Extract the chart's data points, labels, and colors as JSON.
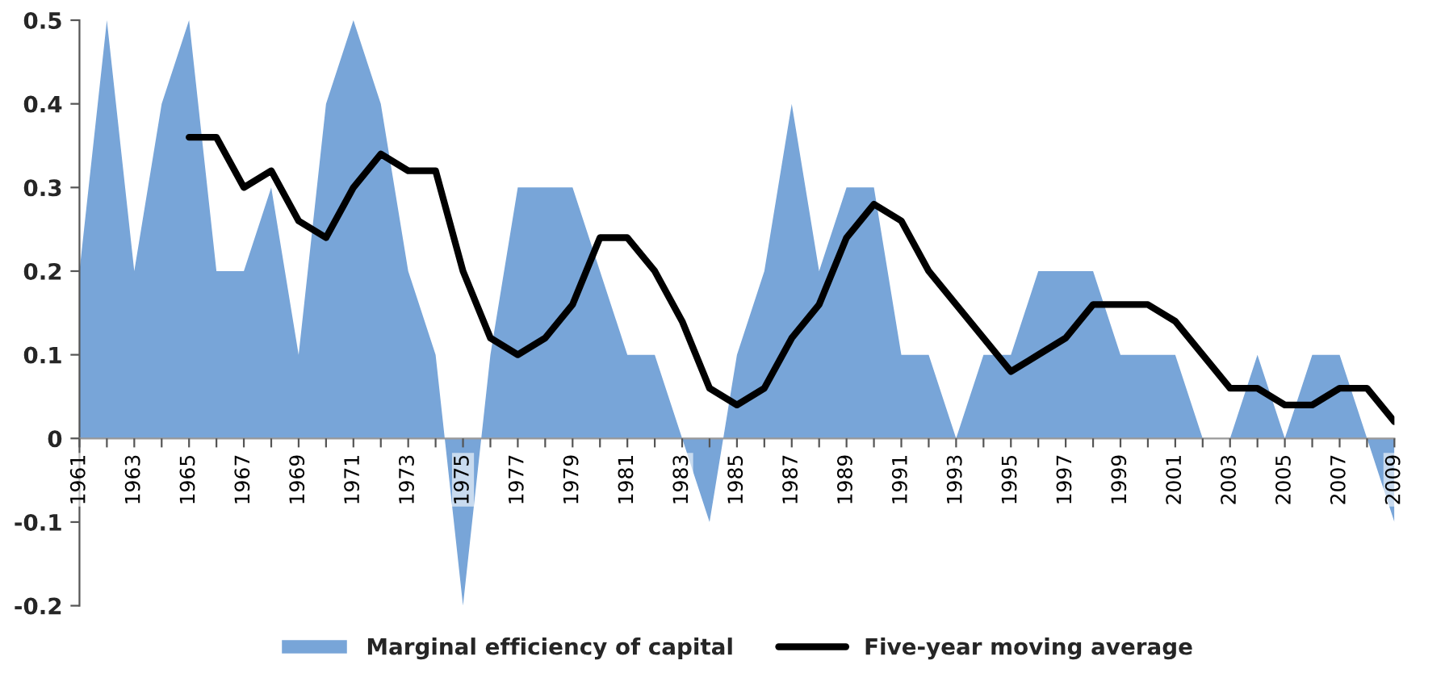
{
  "chart_data": {
    "type": "area",
    "x": [
      1961,
      1962,
      1963,
      1964,
      1965,
      1966,
      1967,
      1968,
      1969,
      1970,
      1971,
      1972,
      1973,
      1974,
      1975,
      1976,
      1977,
      1978,
      1979,
      1980,
      1981,
      1982,
      1983,
      1984,
      1985,
      1986,
      1987,
      1988,
      1989,
      1990,
      1991,
      1992,
      1993,
      1994,
      1995,
      1996,
      1997,
      1998,
      1999,
      2000,
      2001,
      2002,
      2003,
      2004,
      2005,
      2006,
      2007,
      2008,
      2009
    ],
    "series": [
      {
        "name": "Marginal efficiency of capital",
        "color": "#78a5d8",
        "values": [
          0.2,
          0.5,
          0.2,
          0.4,
          0.5,
          0.2,
          0.2,
          0.3,
          0.1,
          0.4,
          0.5,
          0.4,
          0.2,
          0.1,
          -0.2,
          0.1,
          0.3,
          0.3,
          0.3,
          0.2,
          0.1,
          0.1,
          0,
          -0.1,
          0.1,
          0.2,
          0.4,
          0.2,
          0.3,
          0.3,
          0.1,
          0.1,
          0,
          0.1,
          0.1,
          0.2,
          0.2,
          0.2,
          0.1,
          0.1,
          0.1,
          0,
          0,
          0.1,
          0,
          0.1,
          0.1,
          0,
          -0.1
        ]
      },
      {
        "name": "Five-year moving average",
        "type": "line",
        "color": "#000000",
        "values": [
          null,
          null,
          null,
          null,
          0.36,
          0.36,
          0.3,
          0.32,
          0.26,
          0.24,
          0.3,
          0.34,
          0.32,
          0.32,
          0.2,
          0.12,
          0.1,
          0.12,
          0.16,
          0.24,
          0.24,
          0.2,
          0.14,
          0.06,
          0.04,
          0.06,
          0.12,
          0.16,
          0.24,
          0.28,
          0.26,
          0.2,
          0.16,
          0.12,
          0.08,
          0.1,
          0.12,
          0.16,
          0.16,
          0.16,
          0.14,
          0.1,
          0.06,
          0.06,
          0.04,
          0.04,
          0.06,
          0.06,
          0.02
        ]
      }
    ],
    "xlim": [
      1961,
      2009
    ],
    "xticks": [
      1961,
      {
        "value": 1962,
        "label": null
      },
      1963,
      {
        "value": 1964,
        "label": null
      },
      1965,
      {
        "value": 1966,
        "label": null
      },
      1967,
      {
        "value": 1968,
        "label": null
      },
      1969,
      {
        "value": 1970,
        "label": null
      },
      1971,
      {
        "value": 1972,
        "label": null
      },
      1973,
      {
        "value": 1974,
        "label": null
      },
      1975,
      {
        "value": 1976,
        "label": null
      },
      1977,
      {
        "value": 1978,
        "label": null
      },
      1979,
      {
        "value": 1980,
        "label": null
      },
      1981,
      {
        "value": 1982,
        "label": null
      },
      1983,
      {
        "value": 1984,
        "label": null
      },
      1985,
      {
        "value": 1986,
        "label": null
      },
      1987,
      {
        "value": 1988,
        "label": null
      },
      1989,
      {
        "value": 1990,
        "label": null
      },
      1991,
      {
        "value": 1992,
        "label": null
      },
      1993,
      {
        "value": 1994,
        "label": null
      },
      1995,
      {
        "value": 1996,
        "label": null
      },
      1997,
      {
        "value": 1998,
        "label": null
      },
      1999,
      {
        "value": 2000,
        "label": null
      },
      2001,
      {
        "value": 2002,
        "label": null
      },
      2003,
      {
        "value": 2004,
        "label": null
      },
      2005,
      {
        "value": 2006,
        "label": null
      },
      2007,
      {
        "value": 2008,
        "label": null
      },
      2009
    ],
    "ylim": [
      -0.2,
      0.5
    ],
    "yticks": [
      -0.2,
      -0.1,
      0,
      0.1,
      0.2,
      0.3,
      0.4,
      0.5
    ],
    "grid": false,
    "legend": "bottom",
    "marker": "none",
    "line_style": "solid"
  }
}
